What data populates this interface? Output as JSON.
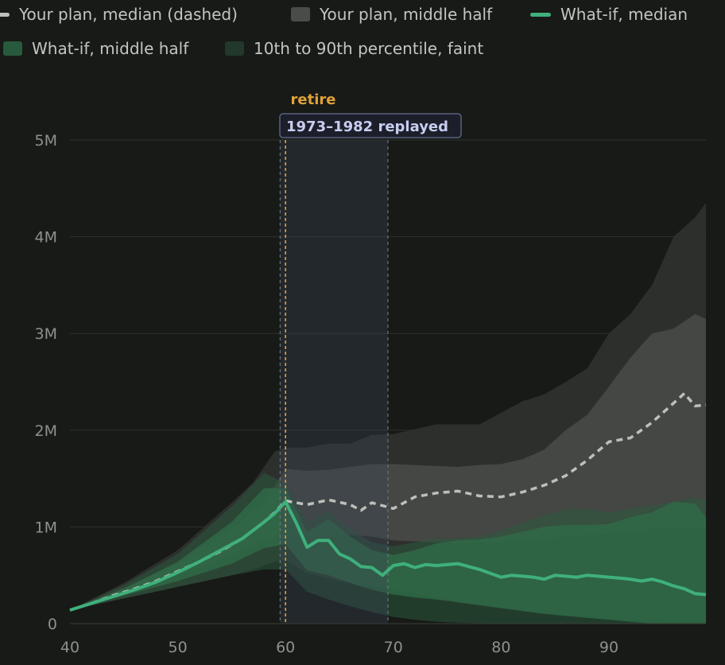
{
  "legend": [
    {
      "label": "Your plan, median (dashed)",
      "color": "#bdbfba",
      "kind": "line"
    },
    {
      "label": "Your plan, middle half",
      "color": "#4a4c49",
      "kind": "box"
    },
    {
      "label": "What-if, median",
      "color": "#3fb07c",
      "kind": "line"
    },
    {
      "label": "What-if, middle half",
      "color": "#285a3e",
      "kind": "box"
    },
    {
      "label": "10th to 90th percentile, faint",
      "color": "#21382b",
      "kind": "box"
    }
  ],
  "annotations": {
    "retire_label": "retire",
    "window_label": "1973–1982 replayed",
    "retire_color": "#e0a23a",
    "window_label_color": "#c8cdf0"
  },
  "chart_data": {
    "type": "area",
    "title": "",
    "xlabel": "",
    "ylabel": "",
    "xlim": [
      40,
      99
    ],
    "ylim": [
      0,
      5000000
    ],
    "x_ticks": [
      40,
      50,
      60,
      70,
      80,
      90
    ],
    "y_ticks": [
      {
        "value": 0,
        "label": "0"
      },
      {
        "value": 1000000,
        "label": "1M"
      },
      {
        "value": 2000000,
        "label": "2M"
      },
      {
        "value": 3000000,
        "label": "3M"
      },
      {
        "value": 4000000,
        "label": "4M"
      },
      {
        "value": 5000000,
        "label": "5M"
      }
    ],
    "grid": true,
    "legend_position": "top",
    "retire_age": 60,
    "replay_window": [
      59.5,
      69.5
    ],
    "series": {
      "plan_p10": {
        "x": [
          40,
          45,
          50,
          55,
          57,
          59,
          60,
          62,
          65,
          68,
          70,
          74,
          78,
          82,
          86,
          90,
          94,
          99
        ],
        "y": [
          140000,
          260000,
          380000,
          500000,
          560000,
          640000,
          660000,
          520000,
          440000,
          390000,
          350000,
          270000,
          200000,
          140000,
          90000,
          50000,
          30000,
          20000
        ]
      },
      "plan_p90": {
        "x": [
          40,
          45,
          50,
          55,
          57,
          59,
          60,
          62,
          64,
          66,
          68,
          70,
          74,
          78,
          82,
          84,
          86,
          88,
          90,
          92,
          94,
          96,
          98,
          99
        ],
        "y": [
          140000,
          420000,
          760000,
          1250000,
          1460000,
          1780000,
          1820000,
          1820000,
          1860000,
          1860000,
          1950000,
          1960000,
          2060000,
          2060000,
          2300000,
          2370000,
          2500000,
          2640000,
          3000000,
          3200000,
          3500000,
          4000000,
          4200000,
          4350000
        ]
      },
      "plan_p25": {
        "x": [
          40,
          45,
          50,
          55,
          58,
          60,
          62,
          64,
          66,
          68,
          70,
          72,
          74,
          76,
          78,
          80,
          82,
          84,
          86,
          88,
          90,
          92,
          94,
          96,
          98,
          99
        ],
        "y": [
          140000,
          310000,
          500000,
          710000,
          870000,
          930000,
          920000,
          920000,
          920000,
          900000,
          860000,
          850000,
          840000,
          830000,
          840000,
          840000,
          860000,
          880000,
          900000,
          920000,
          930000,
          950000,
          980000,
          1000000,
          1000000,
          1000000
        ]
      },
      "plan_p75": {
        "x": [
          40,
          45,
          50,
          55,
          58,
          60,
          62,
          64,
          66,
          68,
          70,
          72,
          74,
          76,
          78,
          80,
          82,
          84,
          86,
          88,
          90,
          92,
          94,
          96,
          98,
          99
        ],
        "y": [
          140000,
          370000,
          620000,
          980000,
          1250000,
          1600000,
          1580000,
          1590000,
          1620000,
          1650000,
          1650000,
          1640000,
          1630000,
          1620000,
          1640000,
          1650000,
          1700000,
          1800000,
          2000000,
          2160000,
          2450000,
          2750000,
          3000000,
          3050000,
          3200000,
          3150000
        ]
      },
      "plan_median": {
        "x": [
          40,
          42,
          44,
          46,
          48,
          50,
          52,
          54,
          56,
          58,
          59,
          60,
          62,
          64,
          66,
          67,
          68,
          70,
          72,
          74,
          76,
          78,
          80,
          82,
          84,
          86,
          88,
          90,
          92,
          94,
          96,
          97,
          98,
          99
        ],
        "y": [
          140000,
          210000,
          290000,
          360000,
          440000,
          540000,
          640000,
          750000,
          880000,
          1050000,
          1150000,
          1270000,
          1230000,
          1280000,
          1230000,
          1170000,
          1250000,
          1190000,
          1310000,
          1350000,
          1370000,
          1320000,
          1310000,
          1360000,
          1430000,
          1530000,
          1690000,
          1880000,
          1920000,
          2080000,
          2280000,
          2380000,
          2250000,
          2260000
        ]
      },
      "whatif_p10": {
        "x": [
          40,
          45,
          50,
          55,
          58,
          60,
          62,
          64,
          66,
          68,
          70,
          72,
          74,
          76,
          78,
          80,
          82,
          84,
          86,
          88,
          90,
          92,
          94,
          96,
          98,
          99
        ],
        "y": [
          140000,
          260000,
          380000,
          500000,
          560000,
          560000,
          330000,
          250000,
          180000,
          120000,
          70000,
          40000,
          20000,
          10000,
          5000,
          0,
          0,
          0,
          0,
          0,
          0,
          0,
          0,
          0,
          0,
          0
        ]
      },
      "whatif_p90": {
        "x": [
          40,
          45,
          50,
          55,
          58,
          60,
          62,
          64,
          66,
          68,
          70,
          72,
          74,
          76,
          78,
          80,
          82,
          84,
          86,
          88,
          90,
          92,
          94,
          96,
          98,
          99
        ],
        "y": [
          140000,
          400000,
          720000,
          1210000,
          1560000,
          1450000,
          1050000,
          1160000,
          980000,
          840000,
          800000,
          840000,
          880000,
          880000,
          900000,
          960000,
          1040000,
          1120000,
          1180000,
          1180000,
          1150000,
          1190000,
          1220000,
          1260000,
          1300000,
          1280000
        ]
      },
      "whatif_p25": {
        "x": [
          40,
          45,
          50,
          55,
          58,
          60,
          62,
          64,
          66,
          68,
          70,
          72,
          74,
          76,
          78,
          80,
          82,
          84,
          86,
          88,
          90,
          92,
          94,
          96,
          98,
          99
        ],
        "y": [
          140000,
          290000,
          440000,
          620000,
          780000,
          820000,
          550000,
          500000,
          420000,
          350000,
          300000,
          270000,
          250000,
          220000,
          190000,
          160000,
          130000,
          100000,
          80000,
          60000,
          40000,
          20000,
          0,
          0,
          0,
          0
        ]
      },
      "whatif_p75": {
        "x": [
          40,
          45,
          50,
          55,
          58,
          60,
          62,
          64,
          66,
          68,
          70,
          72,
          74,
          76,
          78,
          80,
          82,
          84,
          86,
          88,
          90,
          92,
          94,
          96,
          98,
          99
        ],
        "y": [
          140000,
          360000,
          640000,
          1050000,
          1400000,
          1400000,
          950000,
          1080000,
          900000,
          760000,
          710000,
          760000,
          830000,
          860000,
          870000,
          900000,
          950000,
          1000000,
          1020000,
          1020000,
          1030000,
          1100000,
          1150000,
          1260000,
          1240000,
          1100000
        ]
      },
      "whatif_median": {
        "x": [
          40,
          42,
          44,
          46,
          48,
          50,
          52,
          54,
          56,
          58,
          59,
          60,
          61,
          62,
          63,
          64,
          65,
          66,
          67,
          68,
          69,
          70,
          71,
          72,
          73,
          74,
          75,
          76,
          77,
          78,
          79,
          80,
          81,
          82,
          83,
          84,
          85,
          86,
          87,
          88,
          89,
          90,
          91,
          92,
          93,
          94,
          95,
          96,
          97,
          98,
          99
        ],
        "y": [
          140000,
          210000,
          280000,
          350000,
          430000,
          530000,
          640000,
          760000,
          880000,
          1050000,
          1140000,
          1260000,
          1040000,
          790000,
          860000,
          860000,
          720000,
          670000,
          590000,
          580000,
          500000,
          600000,
          620000,
          580000,
          610000,
          600000,
          610000,
          620000,
          590000,
          560000,
          520000,
          480000,
          500000,
          490000,
          480000,
          460000,
          500000,
          490000,
          480000,
          500000,
          490000,
          480000,
          470000,
          460000,
          440000,
          460000,
          430000,
          390000,
          360000,
          310000,
          300000
        ]
      }
    }
  }
}
